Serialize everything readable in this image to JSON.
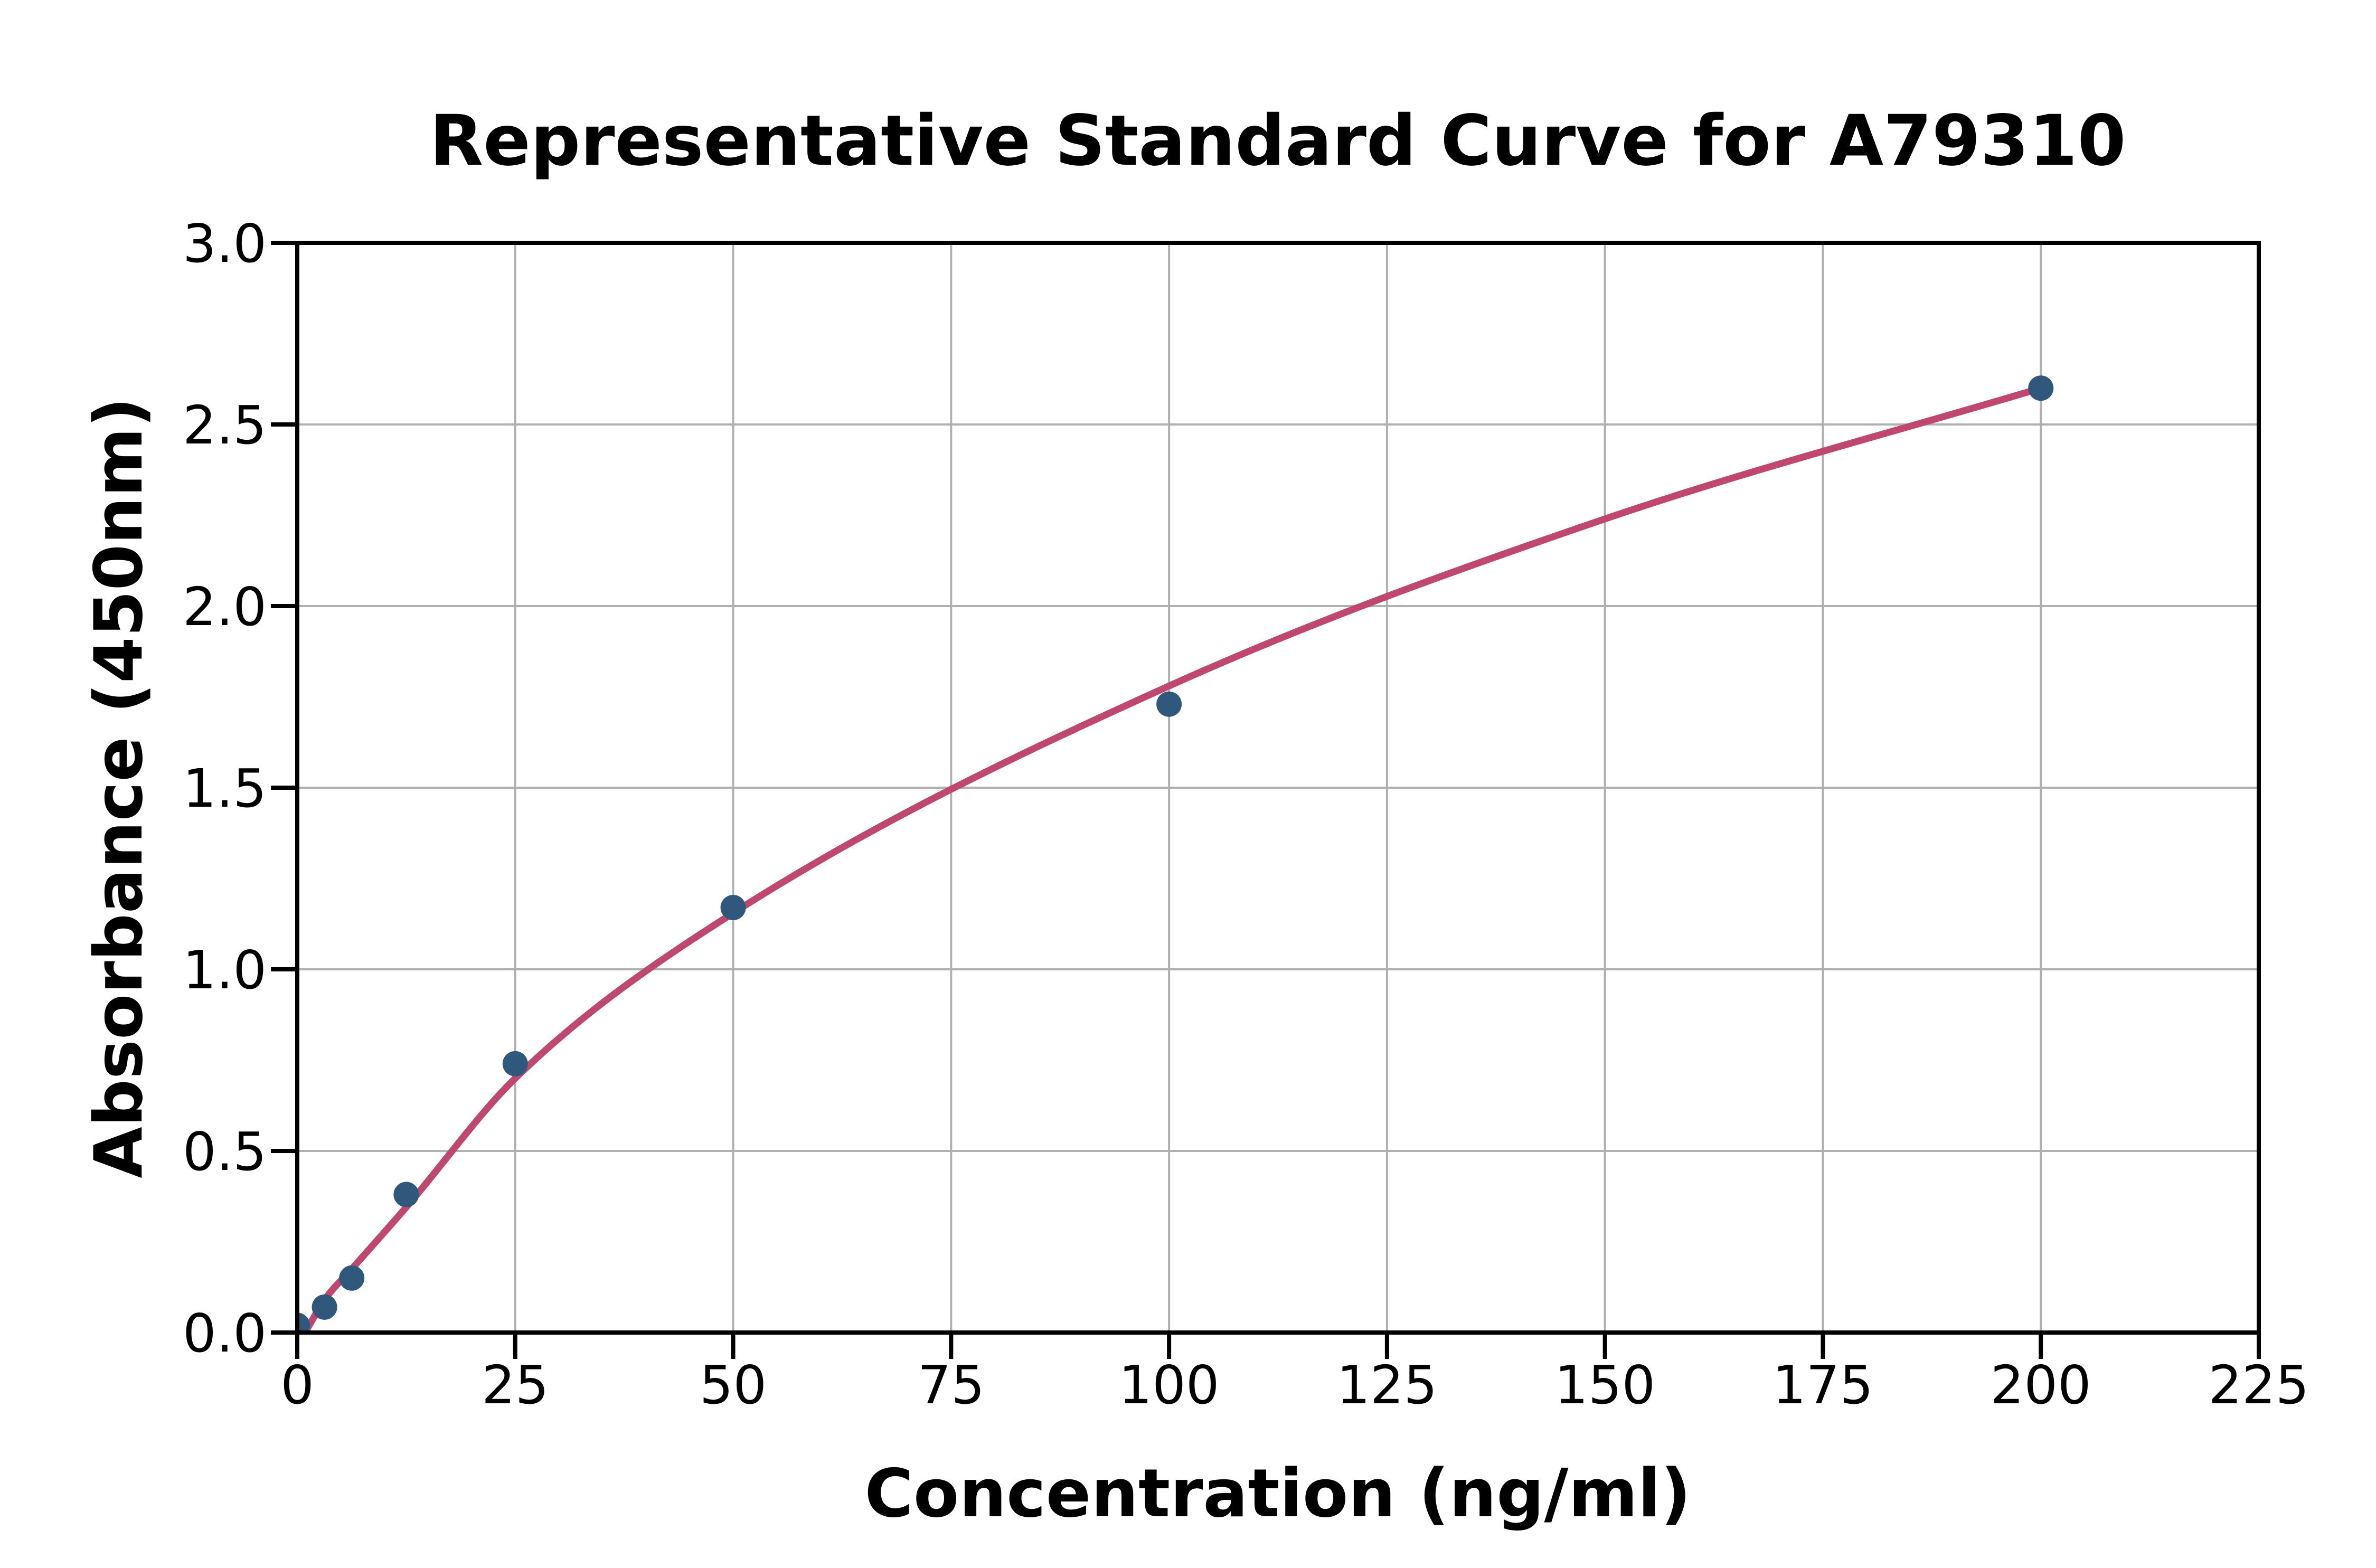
{
  "figure": {
    "background": "#ffffff"
  },
  "chart_data": {
    "type": "scatter",
    "title": "Representative Standard Curve for A79310",
    "xlabel": "Concentration (ng/ml)",
    "ylabel": "Absorbance (450nm)",
    "xlim": [
      0,
      225
    ],
    "ylim": [
      0,
      3
    ],
    "xticks": [
      0,
      25,
      50,
      75,
      100,
      125,
      150,
      175,
      200,
      225
    ],
    "xtick_labels": [
      "0",
      "25",
      "50",
      "75",
      "100",
      "125",
      "150",
      "175",
      "200",
      "225"
    ],
    "yticks": [
      0,
      0.5,
      1,
      1.5,
      2,
      2.5,
      3
    ],
    "ytick_labels": [
      "0.0",
      "0.5",
      "1.0",
      "1.5",
      "2.0",
      "2.5",
      "3.0"
    ],
    "grid": true,
    "legend_position": "none",
    "series": [
      {
        "name": "standards",
        "style": "scatter",
        "points": [
          {
            "concentration": 0,
            "absorbance": 0.02
          },
          {
            "concentration": 3.125,
            "absorbance": 0.07
          },
          {
            "concentration": 6.25,
            "absorbance": 0.15
          },
          {
            "concentration": 12.5,
            "absorbance": 0.38
          },
          {
            "concentration": 25,
            "absorbance": 0.74
          },
          {
            "concentration": 50,
            "absorbance": 1.17
          },
          {
            "concentration": 100,
            "absorbance": 1.73
          },
          {
            "concentration": 200,
            "absorbance": 2.6
          }
        ]
      },
      {
        "name": "fitted-curve",
        "style": "line",
        "points_xy": [
          [
            0.9,
            0.0
          ],
          [
            3.125,
            0.09
          ],
          [
            6.25,
            0.175
          ],
          [
            12.5,
            0.345
          ],
          [
            25,
            0.7
          ],
          [
            50,
            1.155
          ],
          [
            100,
            1.78
          ],
          [
            150,
            2.24
          ],
          [
            200,
            2.6
          ]
        ]
      }
    ],
    "colors": {
      "marker": "#2f587c",
      "curve": "#c0486f",
      "grid": "#b0b0b0",
      "axis": "#000000",
      "text": "#000000",
      "background": "#ffffff"
    }
  }
}
